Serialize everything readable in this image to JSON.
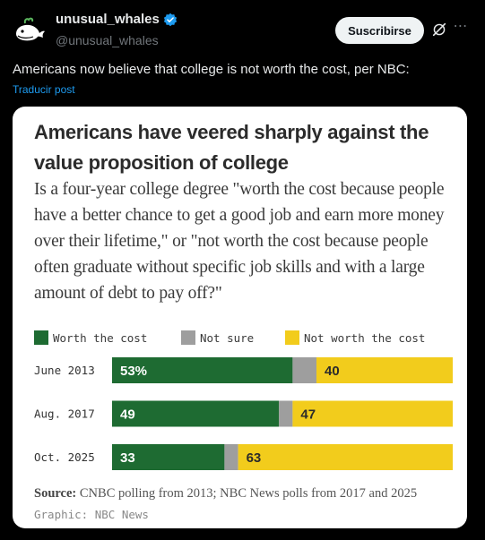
{
  "post": {
    "author_name": "unusual_whales",
    "handle": "@unusual_whales",
    "subscribe_label": "Suscribirse",
    "text": "Americans now believe that college is not worth the cost, per NBC:",
    "translate_label": "Traducir post",
    "icons": {
      "avatar": "whale-logo",
      "verified": "verified-badge-icon",
      "grok": "grok-icon",
      "more": "more-icon"
    }
  },
  "colors": {
    "worth": "#1e6b32",
    "not_sure": "#9e9e9e",
    "not_worth": "#f2cc1c",
    "link": "#1d9bf0"
  },
  "chart_data": {
    "type": "bar",
    "stacked": true,
    "orientation": "horizontal",
    "title": "Americans have veered sharply against the value proposition of college",
    "subtitle": "Is a four-year college degree \"worth the cost because people have a better chance to get a good job and earn more money over their lifetime,\" or \"not worth the cost because people often graduate without specific job skills and with a large amount of debt to pay off?\"",
    "categories": [
      "June 2013",
      "Aug. 2017",
      "Oct. 2025"
    ],
    "series": [
      {
        "name": "Worth the cost",
        "values": [
          53,
          49,
          33
        ],
        "labels": [
          "53%",
          "49",
          "33"
        ]
      },
      {
        "name": "Not sure",
        "values": [
          7,
          4,
          4
        ],
        "labels": [
          "",
          "",
          ""
        ]
      },
      {
        "name": "Not worth the cost",
        "values": [
          40,
          47,
          63
        ],
        "labels": [
          "40",
          "47",
          "63"
        ]
      }
    ],
    "xlim": [
      0,
      100
    ],
    "legend": "top-left",
    "source_label": "Source:",
    "source_text": "CNBC polling from 2013; NBC News polls from 2017 and 2025",
    "graphic_credit": "Graphic: NBC News"
  }
}
